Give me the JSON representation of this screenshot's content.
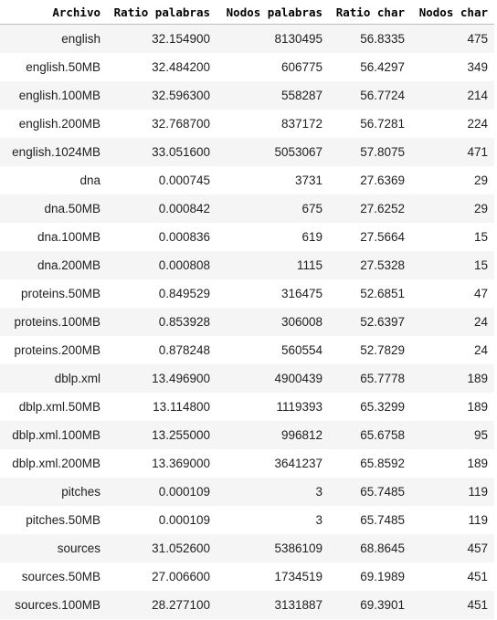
{
  "table": {
    "headers": [
      "Archivo",
      "Ratio palabras",
      "Nodos palabras",
      "Ratio char",
      "Nodos char"
    ],
    "rows": [
      [
        "english",
        "32.154900",
        "8130495",
        "56.8335",
        "475"
      ],
      [
        "english.50MB",
        "32.484200",
        "606775",
        "56.4297",
        "349"
      ],
      [
        "english.100MB",
        "32.596300",
        "558287",
        "56.7724",
        "214"
      ],
      [
        "english.200MB",
        "32.768700",
        "837172",
        "56.7281",
        "224"
      ],
      [
        "english.1024MB",
        "33.051600",
        "5053067",
        "57.8075",
        "471"
      ],
      [
        "dna",
        "0.000745",
        "3731",
        "27.6369",
        "29"
      ],
      [
        "dna.50MB",
        "0.000842",
        "675",
        "27.6252",
        "29"
      ],
      [
        "dna.100MB",
        "0.000836",
        "619",
        "27.5664",
        "15"
      ],
      [
        "dna.200MB",
        "0.000808",
        "1115",
        "27.5328",
        "15"
      ],
      [
        "proteins.50MB",
        "0.849529",
        "316475",
        "52.6851",
        "47"
      ],
      [
        "proteins.100MB",
        "0.853928",
        "306008",
        "52.6397",
        "24"
      ],
      [
        "proteins.200MB",
        "0.878248",
        "560554",
        "52.7829",
        "24"
      ],
      [
        "dblp.xml",
        "13.496900",
        "4900439",
        "65.7778",
        "189"
      ],
      [
        "dblp.xml.50MB",
        "13.114800",
        "1119393",
        "65.3299",
        "189"
      ],
      [
        "dblp.xml.100MB",
        "13.255000",
        "996812",
        "65.6758",
        "95"
      ],
      [
        "dblp.xml.200MB",
        "13.369000",
        "3641237",
        "65.8592",
        "189"
      ],
      [
        "pitches",
        "0.000109",
        "3",
        "65.7485",
        "119"
      ],
      [
        "pitches.50MB",
        "0.000109",
        "3",
        "65.7485",
        "119"
      ],
      [
        "sources",
        "31.052600",
        "5386109",
        "68.8645",
        "457"
      ],
      [
        "sources.50MB",
        "27.006600",
        "1734519",
        "69.1989",
        "451"
      ],
      [
        "sources.100MB",
        "28.277100",
        "3131887",
        "69.3901",
        "451"
      ]
    ]
  }
}
